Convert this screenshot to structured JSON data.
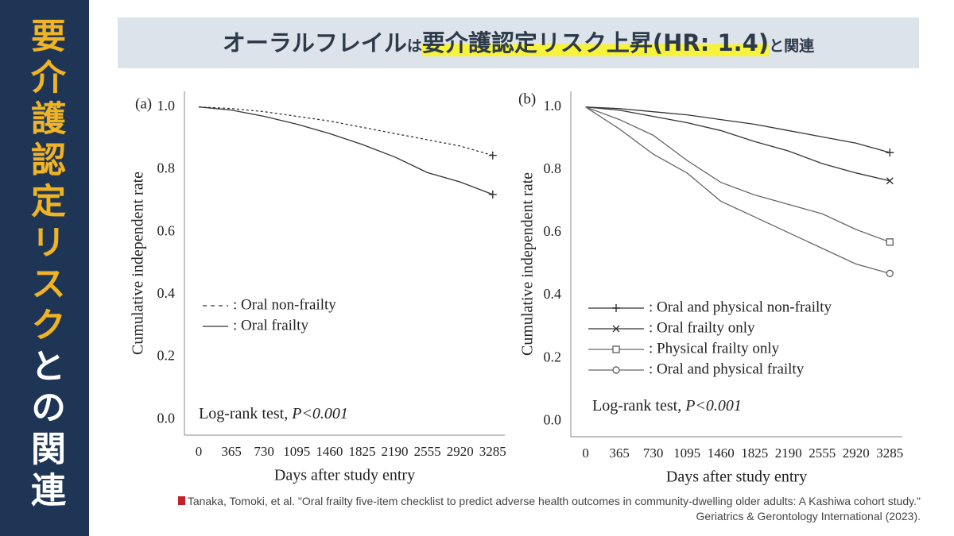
{
  "sidebar": {
    "highlight": "要介護認定リスク",
    "rest": "との関連"
  },
  "header": {
    "title_main": "オーラルフレイル",
    "title_particle": "は",
    "title_highlight": "要介護認定リスク上昇(HR: 1.4)",
    "title_tail": "と関連"
  },
  "citation": {
    "line1": "Tanaka, Tomoki, et al. \"Oral frailty five-item checklist to predict adverse health outcomes in community-dwelling older adults: A Kashiwa cohort study.\"",
    "line2": "Geriatrics & Gerontology International (2023)."
  },
  "chart_data": [
    {
      "type": "line",
      "panel_label": "(a)",
      "x_label": "Days after study entry",
      "y_label": "Cumulative independent rate",
      "annotation": "Log-rank test, ",
      "annotation_italic": "P<0.001",
      "x": [
        0,
        365,
        730,
        1095,
        1460,
        1825,
        2190,
        2555,
        2920,
        3285
      ],
      "series": [
        {
          "name": ": Oral non-frailty",
          "color": "#333333",
          "dash": true,
          "marker": "plus",
          "values": [
            1.0,
            0.995,
            0.985,
            0.97,
            0.955,
            0.935,
            0.915,
            0.895,
            0.875,
            0.845
          ]
        },
        {
          "name": ": Oral frailty",
          "color": "#333333",
          "dash": false,
          "marker": "plus",
          "values": [
            1.0,
            0.99,
            0.97,
            0.945,
            0.915,
            0.88,
            0.84,
            0.79,
            0.76,
            0.72
          ]
        }
      ],
      "xlim": [
        -160,
        3420
      ],
      "xticks": [
        0,
        365,
        730,
        1095,
        1460,
        1825,
        2190,
        2555,
        2920,
        3285
      ],
      "ylim": [
        -0.05,
        1.05
      ],
      "yticks": [
        {
          "value": 0,
          "label": "0.0"
        },
        0.2,
        0.4,
        0.6,
        0.8,
        {
          "value": 1,
          "label": "1.0"
        }
      ],
      "grid": false
    },
    {
      "type": "line",
      "panel_label": "(b)",
      "x_label": "Days after study entry",
      "y_label": "Cumulative independent rate",
      "annotation": "Log-rank test, ",
      "annotation_italic": "P<0.001",
      "x": [
        0,
        365,
        730,
        1095,
        1460,
        1825,
        2190,
        2555,
        2920,
        3285
      ],
      "series": [
        {
          "name": ": Oral and physical non-frailty",
          "color": "#333333",
          "dash": false,
          "marker": "plus",
          "values": [
            1.0,
            0.995,
            0.985,
            0.975,
            0.96,
            0.945,
            0.925,
            0.905,
            0.885,
            0.855
          ]
        },
        {
          "name": ": Oral frailty only",
          "color": "#333333",
          "dash": false,
          "marker": "cross",
          "values": [
            1.0,
            0.99,
            0.97,
            0.95,
            0.925,
            0.89,
            0.86,
            0.82,
            0.79,
            0.765
          ]
        },
        {
          "name": ": Physical frailty only",
          "color": "#666666",
          "dash": false,
          "marker": "square",
          "values": [
            1.0,
            0.96,
            0.91,
            0.83,
            0.76,
            0.72,
            0.69,
            0.66,
            0.61,
            0.57
          ]
        },
        {
          "name": ": Oral and physical frailty",
          "color": "#666666",
          "dash": false,
          "marker": "circle",
          "values": [
            1.0,
            0.93,
            0.85,
            0.79,
            0.7,
            0.65,
            0.6,
            0.55,
            0.5,
            0.47
          ]
        }
      ],
      "xlim": [
        -160,
        3420
      ],
      "xticks": [
        0,
        365,
        730,
        1095,
        1460,
        1825,
        2190,
        2555,
        2920,
        3285
      ],
      "ylim": [
        -0.05,
        1.05
      ],
      "yticks": [
        {
          "value": 0,
          "label": "0.0"
        },
        0.2,
        0.4,
        0.6,
        0.8,
        {
          "value": 1,
          "label": "1.0"
        }
      ],
      "grid": false
    }
  ]
}
